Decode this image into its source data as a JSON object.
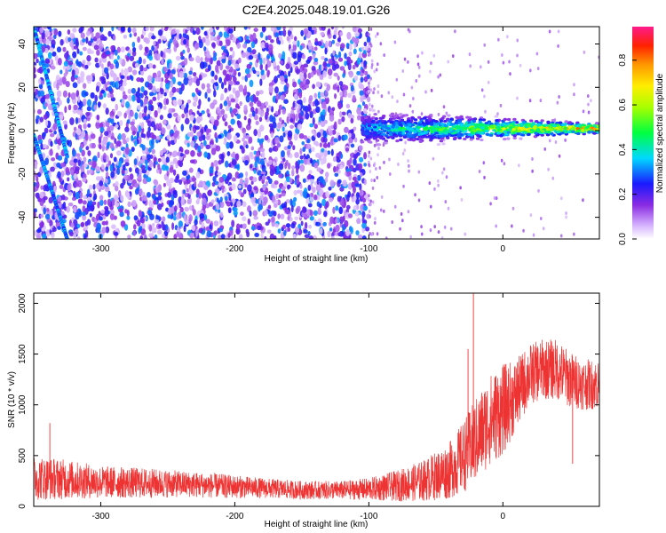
{
  "title": "C2E4.2025.048.19.01.G26",
  "chart_data": [
    {
      "type": "heatmap",
      "name": "spectrogram",
      "xlabel": "Height of straight line (km)",
      "ylabel": "Frequency (Hz)",
      "xlim": [
        -350,
        72
      ],
      "ylim": [
        -50,
        48
      ],
      "xticks": [
        -300,
        -200,
        -100,
        0
      ],
      "yticks": [
        -40,
        -20,
        0,
        20,
        40
      ],
      "grid": false,
      "colorbar": {
        "label": "Normalized spectral amplitude",
        "range": [
          0.0,
          0.95
        ],
        "ticks": [
          0.0,
          0.2,
          0.4,
          0.6,
          0.8
        ],
        "colormap": "white-violet-blue-cyan-green-yellow-orange-red-magenta"
      },
      "features": {
        "noise_region_x": [
          -350,
          -100
        ],
        "noise_amplitude": [
          0.05,
          0.35
        ],
        "carrier_line": {
          "x_start": -105,
          "x_end": 72,
          "freq_center": 1,
          "freq_spread_start": 10,
          "freq_spread_end": 3,
          "amplitude_start": 0.4,
          "amplitude_end": 0.95
        },
        "aliased_lines": [
          {
            "x": [
              -350,
              -325
            ],
            "freq": [
              48,
              -12
            ]
          },
          {
            "x": [
              -350,
              -325
            ],
            "freq": [
              -2,
              -50
            ]
          }
        ]
      }
    },
    {
      "type": "line",
      "name": "snr",
      "xlabel": "Height of straight line (km)",
      "ylabel": "SNR (10 * v/v)",
      "xlim": [
        -350,
        72
      ],
      "ylim": [
        0,
        2100
      ],
      "xticks": [
        -300,
        -200,
        -100,
        0
      ],
      "yticks": [
        0,
        500,
        1000,
        1500,
        2000
      ],
      "grid": false,
      "color": "#ee3333",
      "series": [
        {
          "x": [
            -350,
            -330,
            -300,
            -270,
            -240,
            -210,
            -180,
            -150,
            -120,
            -100,
            -80,
            -60,
            -40,
            -30,
            -20,
            -10,
            0,
            10,
            20,
            30,
            40,
            50,
            60,
            72
          ],
          "values": [
            280,
            270,
            240,
            230,
            220,
            200,
            180,
            160,
            160,
            170,
            200,
            250,
            350,
            480,
            650,
            850,
            950,
            1100,
            1300,
            1350,
            1350,
            1250,
            1200,
            1200
          ],
          "noise_amplitude": [
            220,
            200,
            160,
            150,
            130,
            120,
            100,
            90,
            90,
            110,
            150,
            200,
            280,
            350,
            420,
            450,
            450,
            350,
            300,
            300,
            300,
            280,
            250,
            250
          ]
        }
      ],
      "spikes": [
        {
          "x": -22,
          "y": 2100
        },
        {
          "x": -26,
          "y": 1550
        },
        {
          "x": -338,
          "y": 820
        },
        {
          "x": 11,
          "y": 1420
        },
        {
          "x": 52,
          "y": 420
        }
      ]
    }
  ]
}
